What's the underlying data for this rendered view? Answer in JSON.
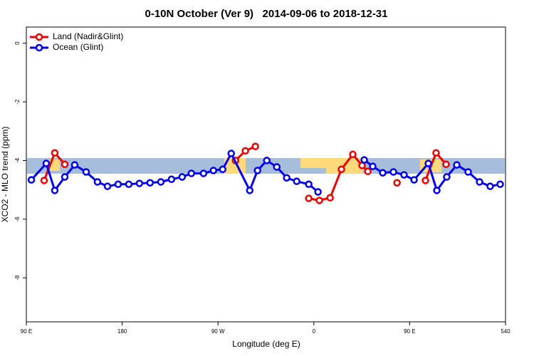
{
  "chart_data": {
    "type": "line",
    "title": "0-10N October (Ver 9)   2014-09-06 to 2018-12-31",
    "x_label": "Longitude (deg E)",
    "y_label": "XCO2 - MLO trend (ppm)",
    "xlim": [
      90,
      540
    ],
    "xticks": [
      {
        "value": 90,
        "label": "90 E"
      },
      180,
      {
        "value": 270,
        "label": "90 W"
      },
      {
        "value": 360,
        "label": "0"
      },
      {
        "value": 450,
        "label": "90 E"
      },
      540
    ],
    "ylim": [
      -9.5,
      0.55
    ],
    "yticks": [
      0,
      -2,
      -4,
      -6,
      -8
    ],
    "legend": "top-left",
    "series": [
      {
        "name": "Land (Nadir&Glint)",
        "color": "#ee0000",
        "x": [
          106.7,
          116.7,
          126.1,
          null,
          286.4,
          295.7,
          305.1,
          null,
          355.2,
          365.2,
          375.3,
          385.9,
          396.6,
          405.3,
          410.7,
          null,
          438.1,
          null,
          464.8,
          474.8,
          484.2
        ],
        "values": [
          -4.68,
          -3.74,
          -4.13,
          null,
          -4.0,
          -3.67,
          -3.52,
          null,
          -5.29,
          -5.36,
          -5.27,
          -4.3,
          -3.79,
          -4.17,
          -4.37,
          null,
          -4.76,
          null,
          -4.68,
          -3.74,
          -4.13
        ]
      },
      {
        "name": "Ocean (Glint)",
        "color": "#0000ee",
        "x": [
          94.7,
          108.7,
          116.7,
          126.1,
          135.4,
          146.1,
          156.8,
          166.2,
          176.2,
          186.2,
          196.2,
          206.2,
          216.3,
          226.3,
          236.3,
          245.0,
          256.4,
          265.7,
          274.4,
          282.4,
          299.8,
          307.1,
          315.8,
          325.2,
          334.5,
          343.9,
          355.2,
          363.9,
          null,
          407.3,
          415.3,
          424.7,
          434.7,
          444.7,
          454.1,
          467.5,
          475.5,
          484.8,
          494.2,
          504.9,
          515.6,
          525.6,
          535.0
        ],
        "values": [
          -4.66,
          -4.1,
          -5.02,
          -4.56,
          -4.15,
          -4.39,
          -4.73,
          -4.88,
          -4.81,
          -4.81,
          -4.78,
          -4.76,
          -4.73,
          -4.64,
          -4.56,
          -4.44,
          -4.44,
          -4.34,
          -4.3,
          -3.76,
          -5.02,
          -4.34,
          -4.0,
          -4.22,
          -4.59,
          -4.71,
          -4.81,
          -5.07,
          null,
          -3.98,
          -4.2,
          -4.42,
          -4.39,
          -4.49,
          -4.66,
          -4.1,
          -5.02,
          -4.56,
          -4.15,
          -4.39,
          -4.73,
          -4.88,
          -4.81
        ]
      }
    ]
  }
}
